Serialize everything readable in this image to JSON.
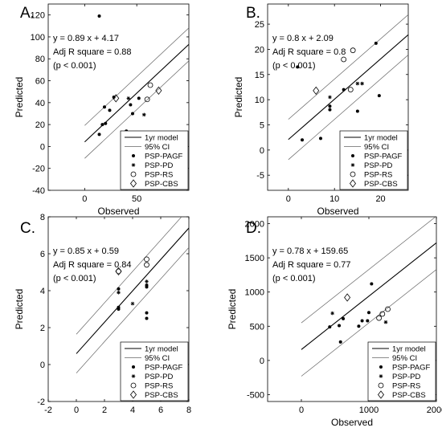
{
  "legend": {
    "model": "1yr model",
    "ci": "95% CI",
    "pagf": "PSP-PAGF",
    "pd": "PSP-PD",
    "rs": "PSP-RS",
    "cbs": "PSP-CBS"
  },
  "chart_data": [
    {
      "id": "A",
      "type": "scatter",
      "panel_label": "A.",
      "xlabel": "Observed",
      "ylabel": "Predicted",
      "xlim": [
        -35,
        100
      ],
      "ylim": [
        -40,
        130
      ],
      "xticks": [
        0,
        50
      ],
      "yticks": [
        -40,
        -20,
        0,
        20,
        40,
        60,
        80,
        100,
        120
      ],
      "equation": "y = 0.89 x + 4.17",
      "adj_r2": "Adj R square = 0.88",
      "p_value": "(p < 0.001)",
      "fit": {
        "slope": 0.89,
        "intercept": 4.17
      },
      "ci_offset": 15,
      "series": [
        {
          "name": "PSP-PAGF",
          "marker": "dot",
          "points": [
            [
              14,
              119
            ],
            [
              14,
              11
            ],
            [
              17,
              20
            ],
            [
              20,
              21
            ],
            [
              24,
              33
            ],
            [
              28,
              45
            ],
            [
              40,
              14
            ],
            [
              44,
              38
            ],
            [
              46,
              30
            ],
            [
              52,
              44
            ],
            [
              19,
              36
            ]
          ]
        },
        {
          "name": "PSP-PD",
          "marker": "star",
          "points": [
            [
              42,
              44
            ],
            [
              57,
              29
            ]
          ]
        },
        {
          "name": "PSP-RS",
          "marker": "circle",
          "points": [
            [
              63,
              56
            ],
            [
              60,
              43
            ]
          ]
        },
        {
          "name": "PSP-CBS",
          "marker": "diamond",
          "points": [
            [
              30,
              44
            ],
            [
              71,
              51
            ]
          ]
        }
      ]
    },
    {
      "id": "B",
      "type": "scatter",
      "panel_label": "B.",
      "xlabel": "Observed",
      "ylabel": "Predicted",
      "xlim": [
        -4.5,
        26
      ],
      "ylim": [
        -8,
        29
      ],
      "xticks": [
        0,
        10,
        20
      ],
      "yticks": [
        -5,
        0,
        5,
        10,
        15,
        20,
        25
      ],
      "equation": "y = 0.8 x + 2.09",
      "adj_r2": "Adj R square = 0.8",
      "p_value": "(p < 0.001)",
      "fit": {
        "slope": 0.8,
        "intercept": 2.09
      },
      "ci_offset": 4,
      "series": [
        {
          "name": "PSP-PAGF",
          "marker": "dot",
          "points": [
            [
              2,
              16.5
            ],
            [
              3,
              2
            ],
            [
              7,
              2.3
            ],
            [
              9,
              8
            ],
            [
              9,
              8.7
            ],
            [
              12,
              12
            ],
            [
              15,
              7.7
            ],
            [
              19,
              21.2
            ],
            [
              19.7,
              10.8
            ]
          ]
        },
        {
          "name": "PSP-PD",
          "marker": "star",
          "points": [
            [
              9,
              10.5
            ],
            [
              15,
              13.2
            ],
            [
              16,
              13.2
            ]
          ]
        },
        {
          "name": "PSP-RS",
          "marker": "circle",
          "points": [
            [
              12,
              18
            ],
            [
              14,
              19.8
            ],
            [
              13.5,
              12
            ]
          ]
        },
        {
          "name": "PSP-CBS",
          "marker": "diamond",
          "points": [
            [
              6,
              11.8
            ]
          ]
        }
      ]
    },
    {
      "id": "C",
      "type": "scatter",
      "panel_label": "C.",
      "xlabel": "",
      "ylabel": "Predicted",
      "xlim": [
        -2,
        8
      ],
      "ylim": [
        -2,
        8
      ],
      "xticks": [
        -2,
        0,
        2,
        4,
        6,
        8
      ],
      "yticks": [
        -2,
        0,
        2,
        4,
        6,
        8
      ],
      "equation": "y = 0.85 x + 0.59",
      "adj_r2": "Adj R square = 0.84",
      "p_value": "(p < 0.001)",
      "fit": {
        "slope": 0.85,
        "intercept": 0.59
      },
      "ci_offset": 1.05,
      "series": [
        {
          "name": "PSP-PAGF",
          "marker": "dot",
          "points": [
            [
              3,
              4.1
            ],
            [
              3,
              3.1
            ],
            [
              3,
              3.0
            ],
            [
              5,
              4.3
            ],
            [
              5,
              4.2
            ],
            [
              5,
              2.8
            ],
            [
              5,
              2.5
            ]
          ]
        },
        {
          "name": "PSP-PD",
          "marker": "star",
          "points": [
            [
              3,
              3.9
            ],
            [
              4,
              3.3
            ],
            [
              5,
              4.5
            ]
          ]
        },
        {
          "name": "PSP-RS",
          "marker": "circle",
          "points": [
            [
              3,
              5.05
            ],
            [
              5,
              5.7
            ],
            [
              5,
              5.4
            ]
          ]
        },
        {
          "name": "PSP-CBS",
          "marker": "diamond",
          "points": [
            [
              3,
              5.05
            ]
          ]
        }
      ]
    },
    {
      "id": "D",
      "type": "scatter",
      "panel_label": "D.",
      "xlabel": "Observed",
      "ylabel": "Predicted",
      "xlim": [
        -500,
        2000
      ],
      "ylim": [
        -600,
        2100
      ],
      "xticks": [
        0,
        1000,
        2000
      ],
      "yticks": [
        -500,
        0,
        500,
        1000,
        1500,
        2000
      ],
      "equation": "y = 0.78 x + 159.65",
      "adj_r2": "Adj R square = 0.77",
      "p_value": "(p < 0.001)",
      "fit": {
        "slope": 0.78,
        "intercept": 159.65
      },
      "ci_offset": 390,
      "series": [
        {
          "name": "PSP-PAGF",
          "marker": "dot",
          "points": [
            [
              420,
              490
            ],
            [
              560,
              510
            ],
            [
              580,
              270
            ],
            [
              620,
              610
            ],
            [
              850,
              500
            ],
            [
              900,
              580
            ],
            [
              980,
              580
            ],
            [
              1000,
              700
            ],
            [
              1040,
              1120
            ]
          ]
        },
        {
          "name": "PSP-PD",
          "marker": "star",
          "points": [
            [
              460,
              690
            ],
            [
              1250,
              560
            ]
          ]
        },
        {
          "name": "PSP-RS",
          "marker": "circle",
          "points": [
            [
              1150,
              620
            ],
            [
              1280,
              750
            ],
            [
              1200,
              680
            ]
          ]
        },
        {
          "name": "PSP-CBS",
          "marker": "diamond",
          "points": [
            [
              680,
              920
            ]
          ]
        }
      ]
    }
  ]
}
